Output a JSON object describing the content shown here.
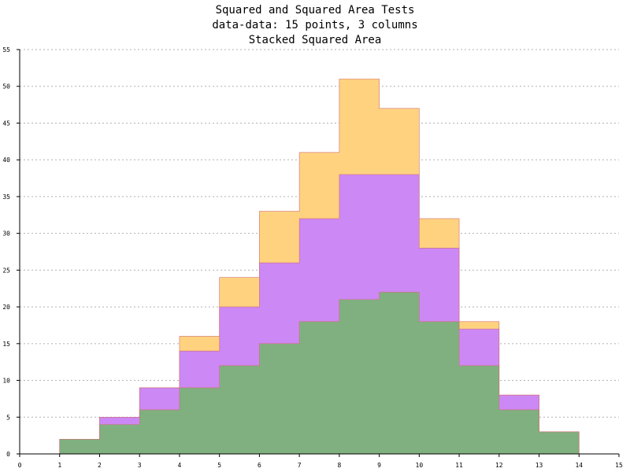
{
  "chart_data": {
    "type": "area",
    "stacked": true,
    "step": true,
    "title": "Squared and Squared Area Tests",
    "subtitle": "data-data: 15 points, 3 columns",
    "subtitle2": "Stacked Squared Area",
    "xlabel": "",
    "ylabel": "",
    "xlim": [
      0,
      15
    ],
    "ylim": [
      0,
      55
    ],
    "x_ticks": [
      0,
      1,
      2,
      3,
      4,
      5,
      6,
      7,
      8,
      9,
      10,
      11,
      12,
      13,
      14,
      15
    ],
    "y_ticks": [
      0,
      5,
      10,
      15,
      20,
      25,
      30,
      35,
      40,
      45,
      50,
      55
    ],
    "grid": "horizontal-dashed",
    "x": [
      1,
      2,
      3,
      4,
      5,
      6,
      7,
      8,
      9,
      10,
      11,
      12,
      13,
      14,
      15
    ],
    "series": [
      {
        "color": "#80b080",
        "values": [
          2,
          4,
          6,
          9,
          12,
          15,
          18,
          21,
          22,
          18,
          12,
          6,
          3,
          0,
          0
        ]
      },
      {
        "color": "#cc88f4",
        "values": [
          0,
          1,
          3,
          5,
          8,
          11,
          14,
          17,
          16,
          10,
          5,
          2,
          0,
          0,
          0
        ]
      },
      {
        "color": "#ffd280",
        "values": [
          0,
          0,
          0,
          2,
          4,
          7,
          9,
          13,
          9,
          4,
          1,
          0,
          0,
          0,
          0
        ]
      }
    ]
  }
}
